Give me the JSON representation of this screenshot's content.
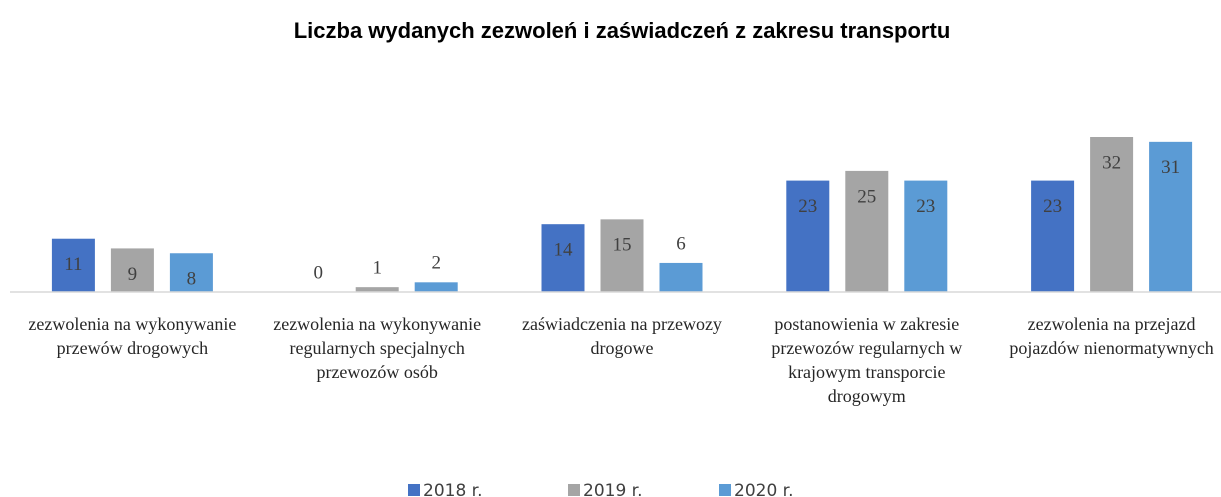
{
  "chart_data": {
    "type": "bar",
    "title": "Liczba wydanych zezwoleń i zaświadczeń z zakresu transportu",
    "categories": [
      "zezwolenia na wykonywanie przewów drogowych",
      "zezwolenia na wykonywanie regularnych specjalnych przewozów osób",
      "zaświadczenia na przewozy drogowe",
      "postanowienia w zakresie przewozów regularnych w krajowym transporcie drogowym",
      "zezwolenia na przejazd pojazdów nienormatywnych"
    ],
    "series": [
      {
        "name": "2018 r.",
        "color": "#4472c4",
        "values": [
          11,
          0,
          14,
          23,
          23
        ]
      },
      {
        "name": "2019 r.",
        "color": "#a5a5a5",
        "values": [
          9,
          1,
          15,
          25,
          32
        ]
      },
      {
        "name": "2020 r.",
        "color": "#5b9bd5",
        "values": [
          8,
          2,
          6,
          23,
          31
        ]
      }
    ],
    "legend": "bottom"
  }
}
